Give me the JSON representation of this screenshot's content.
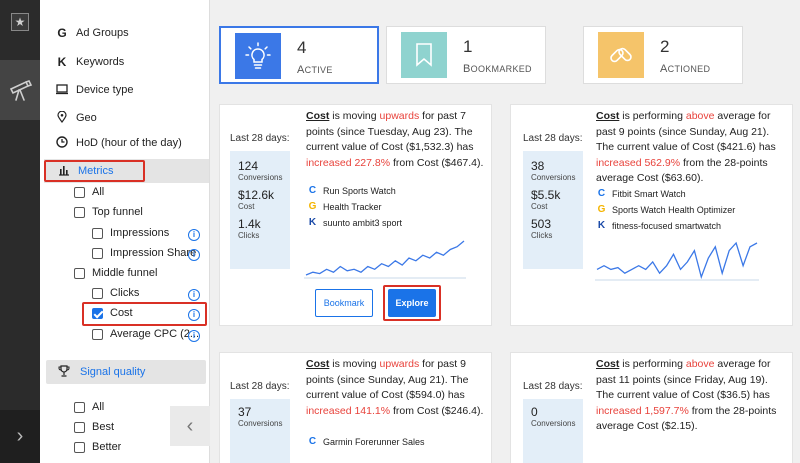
{
  "sidebar": {
    "items": [
      {
        "icon": "G",
        "label": "Ad Groups"
      },
      {
        "icon": "K",
        "label": "Keywords"
      },
      {
        "icon": "device-icon",
        "label": "Device type"
      },
      {
        "icon": "pin-icon",
        "label": "Geo"
      },
      {
        "icon": "clock-icon",
        "label": "HoD (hour of the day)"
      }
    ],
    "metrics_label": "Metrics",
    "metric_options": {
      "all": "All",
      "top_funnel": "Top funnel",
      "impressions": "Impressions",
      "impression_share": "Impression Share",
      "middle_funnel": "Middle funnel",
      "clicks": "Clicks",
      "cost": "Cost",
      "average_cpc": "Average CPC (2..."
    },
    "signal_quality_label": "Signal quality",
    "signal_options": {
      "all": "All",
      "best": "Best",
      "better": "Better"
    }
  },
  "tiles": [
    {
      "count": "4",
      "label": "Active",
      "color": "#3b78e7"
    },
    {
      "count": "1",
      "label": "Bookmarked",
      "color": "#8fd3cf"
    },
    {
      "count": "2",
      "label": "Actioned",
      "color": "#f5c46a"
    }
  ],
  "cards": [
    {
      "last_days": "Last 28 days:",
      "stats": [
        {
          "value": "124",
          "label": "Conversions"
        },
        {
          "value": "$12.6k",
          "label": "Cost"
        },
        {
          "value": "1.4k",
          "label": "Clicks"
        }
      ],
      "desc": {
        "metric": "Cost",
        "p1": " is moving ",
        "dir": "upwards",
        "p2": " for past 7 points (since Tuesday, Aug 23). The current value of Cost ($1,532.3) has ",
        "chg": "increased 227.8%",
        "p3": " from Cost ($467.4)."
      },
      "sources": [
        {
          "icon": "C",
          "label": "Run Sports Watch"
        },
        {
          "icon": "G",
          "label": "Health Tracker"
        },
        {
          "icon": "K",
          "label": "suunto ambit3 sport"
        }
      ],
      "bookmark": "Bookmark",
      "explore": "Explore",
      "sparkline": [
        2,
        3,
        2.5,
        4,
        3,
        5,
        3.5,
        4,
        3,
        5,
        4,
        6,
        5,
        7,
        5.5,
        8,
        7,
        9,
        8,
        10,
        9,
        11,
        12,
        14
      ]
    },
    {
      "last_days": "Last 28 days:",
      "stats": [
        {
          "value": "38",
          "label": "Conversions"
        },
        {
          "value": "$5.5k",
          "label": "Cost"
        },
        {
          "value": "503",
          "label": "Clicks"
        }
      ],
      "desc": {
        "metric": "Cost",
        "p1": " is performing ",
        "dir": "above",
        "p2": " average for past 9 points (since Sunday, Aug 21). The current value of Cost ($421.6) has ",
        "chg": "increased 562.9%",
        "p3": " from the 28-points average Cost ($63.60)."
      },
      "sources": [
        {
          "icon": "C",
          "label": "Fitbit Smart Watch"
        },
        {
          "icon": "G",
          "label": "Sports Watch Health Optimizer"
        },
        {
          "icon": "K",
          "label": "fitness-focused smartwatch"
        }
      ],
      "sparkline": [
        5,
        6,
        5,
        5.5,
        4,
        5,
        6,
        5,
        7,
        4,
        6,
        9,
        5,
        7,
        10,
        3,
        8,
        11,
        4,
        10,
        12,
        6,
        11,
        12
      ]
    },
    {
      "last_days": "Last 28 days:",
      "stats": [
        {
          "value": "37",
          "label": "Conversions"
        }
      ],
      "desc": {
        "metric": "Cost",
        "p1": " is moving ",
        "dir": "upwards",
        "p2": " for past 9 points (since Sunday, Aug 21). The current value of Cost ($594.0) has ",
        "chg": "increased 141.1%",
        "p3": " from Cost ($246.4)."
      },
      "sources": [
        {
          "icon": "C",
          "label": "Garmin Forerunner Sales"
        }
      ]
    },
    {
      "last_days": "Last 28 days:",
      "stats": [
        {
          "value": "0",
          "label": "Conversions"
        }
      ],
      "desc": {
        "metric": "Cost",
        "p1": " is performing ",
        "dir": "above",
        "p2": " average for past 11 points (since Friday, Aug 19). The current value of Cost ($36.5) has ",
        "chg": "increased 1,597.7%",
        "p3": " from the 28-points average Cost ($2.15)."
      },
      "sources": []
    }
  ]
}
